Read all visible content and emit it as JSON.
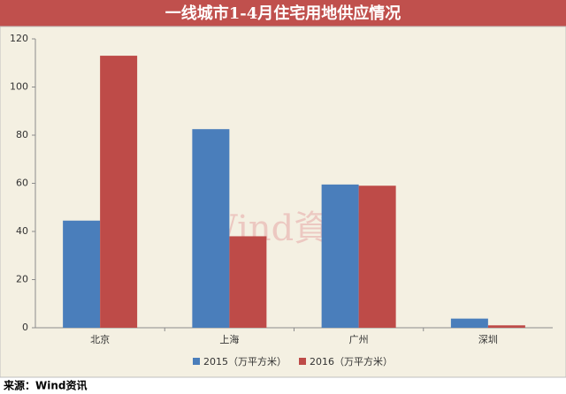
{
  "chart_data": {
    "type": "bar",
    "title": "一线城市1-4月住宅用地供应情况",
    "categories": [
      "北京",
      "上海",
      "广州",
      "深圳"
    ],
    "series": [
      {
        "name": "2015（万平方米）",
        "color": "#4a7ebb",
        "values": [
          44.5,
          82.5,
          59.5,
          3.8
        ]
      },
      {
        "name": "2016（万平方米）",
        "color": "#be4b48",
        "values": [
          113,
          38,
          59,
          1
        ]
      }
    ],
    "ylim": [
      0,
      120
    ],
    "yticks": [
      0,
      20,
      40,
      60,
      80,
      100,
      120
    ],
    "grid": false,
    "legend": "bottom",
    "watermark": "Wind資訊",
    "source": "来源：Wind资讯"
  }
}
